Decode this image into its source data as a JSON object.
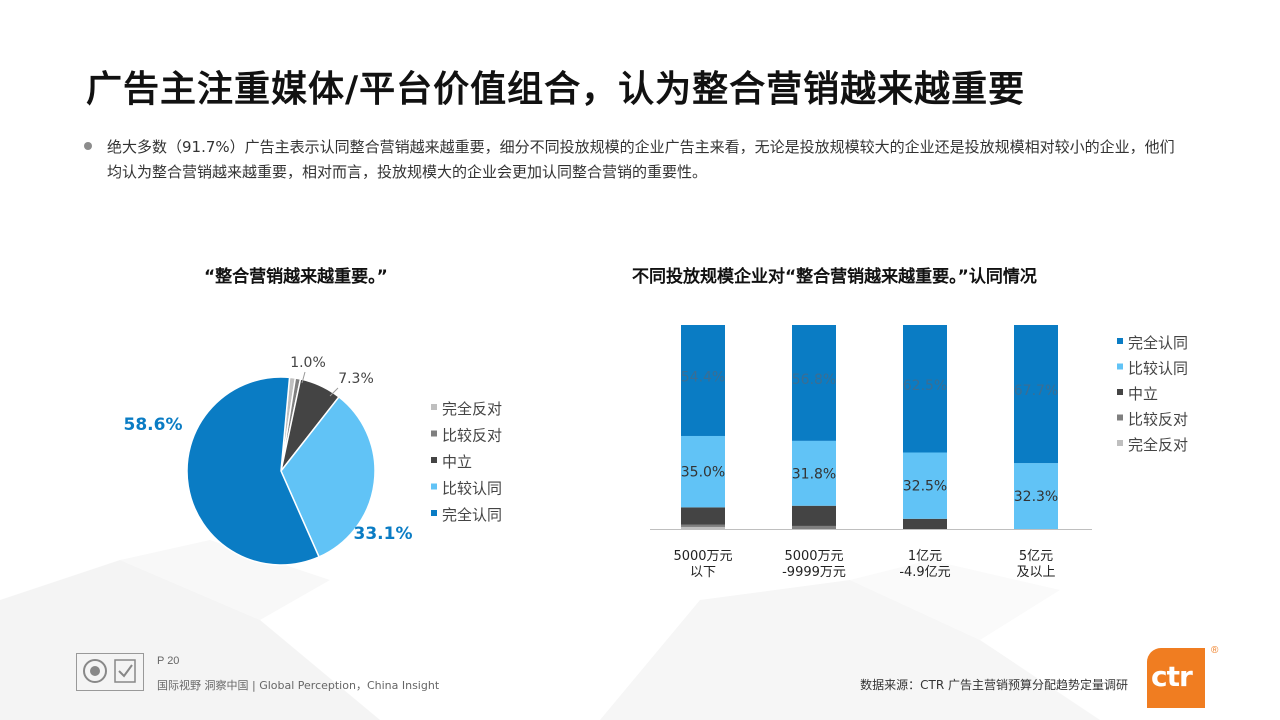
{
  "page": {
    "title": "广告主注重媒体/平台价值组合，认为整合营销越来越重要",
    "description": "绝大多数（91.7%）广告主表示认同整合营销越来越重要，细分不同投放规模的企业广告主来看，无论是投放规模较大的企业还是投放规模相对较小的企业，他们均认为整合营销越来越重要，相对而言，投放规模大的企业会更加认同整合营销的重要性。",
    "page_number": "P 20",
    "slogan": "国际视野  洞察中国 |  Global Perception，China Insight",
    "source": "数据来源：CTR 广告主营销预算分配趋势定量调研",
    "brand": "ctr",
    "brand_mark": "®"
  },
  "chart_data": [
    {
      "type": "pie",
      "title": "“整合营销越来越重要。”",
      "slices": [
        {
          "label": "完全认同",
          "value": 58.6,
          "display": "58.6%",
          "color": "#0a7cc4"
        },
        {
          "label": "比较认同",
          "value": 33.1,
          "display": "33.1%",
          "color": "#61c3f6"
        },
        {
          "label": "中立",
          "value": 7.3,
          "display": "7.3%",
          "color": "#444444"
        },
        {
          "label": "比较反对",
          "value": 0.9,
          "display": "",
          "color": "#7f7f7f"
        },
        {
          "label": "完全反对",
          "value": 1.0,
          "display": "1.0%",
          "color": "#bfbfbf"
        }
      ],
      "legend": [
        "完全反对",
        "比较反对",
        "中立",
        "比较认同",
        "完全认同"
      ],
      "legend_position": "right"
    },
    {
      "type": "bar",
      "stacked": true,
      "percent": true,
      "title": "不同投放规模企业对“整合营销越来越重要。”认同情况",
      "categories": [
        [
          "5000万元",
          "以下"
        ],
        [
          "5000万元",
          "-9999万元"
        ],
        [
          "1亿元",
          "-4.9亿元"
        ],
        [
          "5亿元",
          "及以上"
        ]
      ],
      "series": [
        {
          "name": "完全反对",
          "color": "#bfbfbf",
          "values": [
            1.0,
            0.0,
            0.0,
            0.0
          ],
          "labels": [
            "",
            "",
            "",
            ""
          ]
        },
        {
          "name": "比较反对",
          "color": "#7f7f7f",
          "values": [
            1.2,
            1.5,
            0.0,
            0.0
          ],
          "labels": [
            "",
            "",
            "",
            ""
          ]
        },
        {
          "name": "中立",
          "color": "#444444",
          "values": [
            8.4,
            9.9,
            5.0,
            0.0
          ],
          "labels": [
            "",
            "",
            "",
            ""
          ]
        },
        {
          "name": "比较认同",
          "color": "#61c3f6",
          "values": [
            35.0,
            31.8,
            32.5,
            32.3
          ],
          "labels": [
            "35.0%",
            "31.8%",
            "32.5%",
            "32.3%"
          ]
        },
        {
          "name": "完全认同",
          "color": "#0a7cc4",
          "values": [
            54.4,
            56.8,
            62.5,
            67.7
          ],
          "labels": [
            "54.4%",
            "56.8%",
            "62.5%",
            "67.7%"
          ]
        }
      ],
      "legend": [
        "完全认同",
        "比较认同",
        "中立",
        "比较反对",
        "完全反对"
      ],
      "legend_position": "right",
      "ylim": [
        0,
        100
      ]
    }
  ]
}
